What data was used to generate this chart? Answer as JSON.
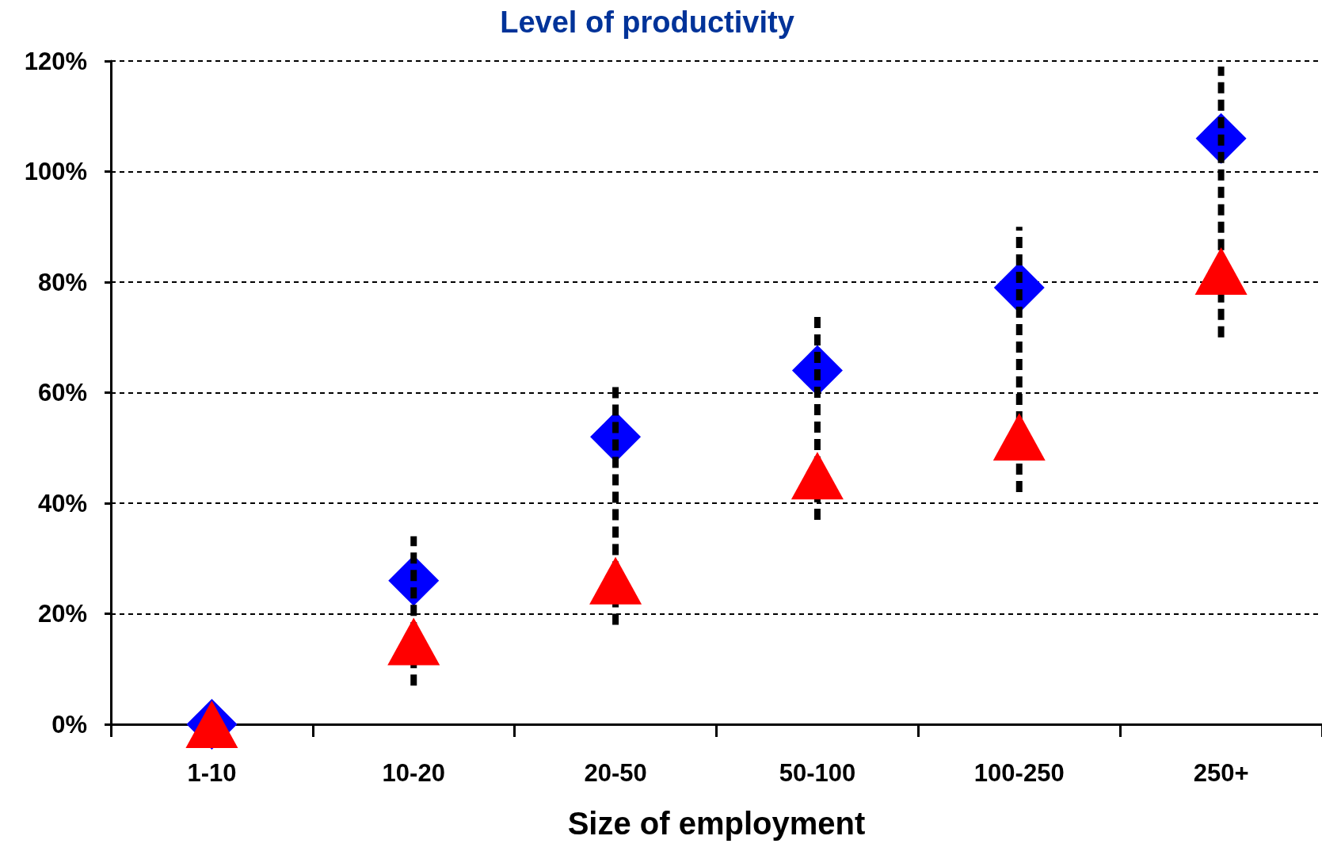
{
  "chart_data": {
    "type": "scatter",
    "title": "Level of productivity",
    "xlabel": "Size of employment",
    "categories": [
      "1-10",
      "10-20",
      "20-50",
      "50-100",
      "100-250",
      "250+"
    ],
    "series": [
      {
        "color": "#0000ff",
        "marker": "diamond",
        "values": [
          0,
          26,
          52,
          64,
          79,
          106
        ],
        "errors": [
          null,
          [
            7,
            34
          ],
          [
            18,
            61
          ],
          [
            37,
            74
          ],
          [
            42,
            90
          ],
          [
            70,
            119
          ]
        ]
      },
      {
        "color": "#ff0000",
        "marker": "triangle",
        "values": [
          0,
          15,
          26,
          45,
          52,
          82
        ]
      }
    ],
    "ylim": [
      0,
      120
    ],
    "yticks": [
      {
        "value": 0,
        "label": "0%"
      },
      {
        "value": 20,
        "label": "20%"
      },
      {
        "value": 40,
        "label": "40%"
      },
      {
        "value": 60,
        "label": "60%"
      },
      {
        "value": 80,
        "label": "80%"
      },
      {
        "value": 100,
        "label": "100%"
      },
      {
        "value": 120,
        "label": "120%"
      }
    ],
    "grid": "y"
  }
}
